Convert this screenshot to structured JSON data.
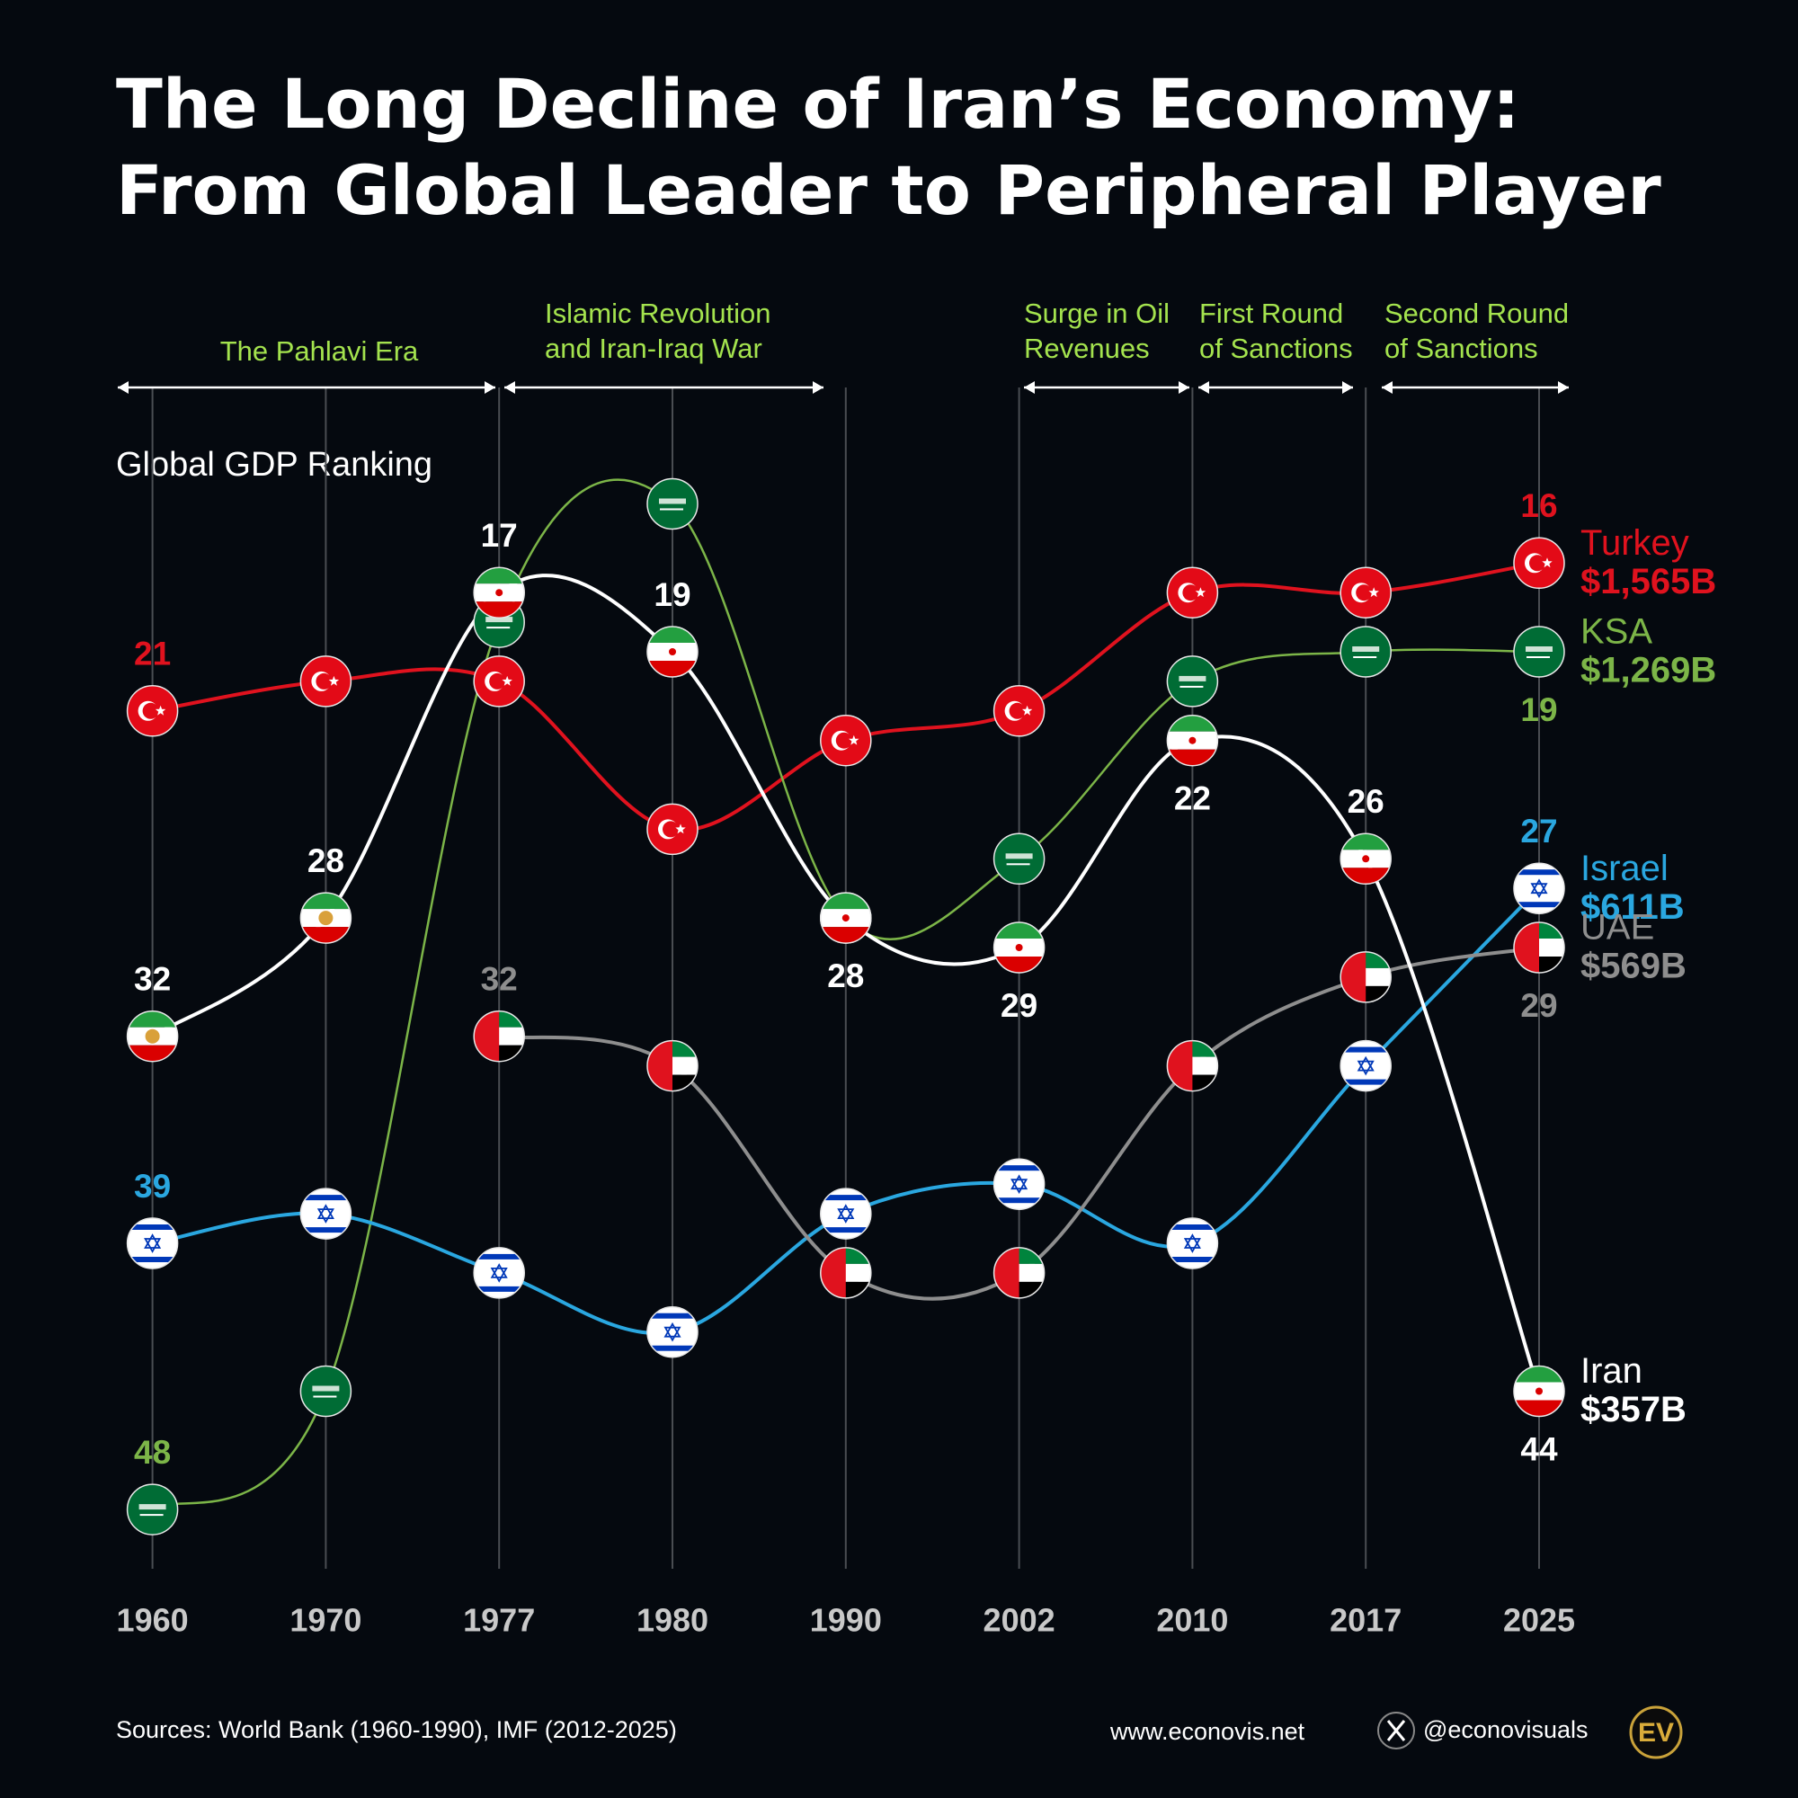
{
  "chart_data": {
    "type": "bump",
    "title": "The Long Decline of Iran’s Economy:",
    "subtitle": "From Global Leader to Peripheral Player",
    "ylabel": "Global GDP Ranking",
    "categories": [
      "1960",
      "1970",
      "1977",
      "1980",
      "1990",
      "2002",
      "2010",
      "2017",
      "2025"
    ],
    "ylim": [
      50,
      12
    ],
    "series": [
      {
        "name": "Turkey",
        "color": "#e0121e",
        "end_label": "$1,565B",
        "values": [
          21,
          20,
          20,
          25,
          22,
          21,
          17,
          17,
          16
        ]
      },
      {
        "name": "KSA",
        "color": "#7cb548",
        "end_label": "$1,269B",
        "values": [
          48,
          44,
          18,
          14,
          28,
          26,
          20,
          19,
          19
        ]
      },
      {
        "name": "Israel",
        "color": "#2aa7e0",
        "end_label": "$611B",
        "values": [
          39,
          38,
          40,
          42,
          38,
          37,
          39,
          33,
          27
        ]
      },
      {
        "name": "UAE",
        "color": "#8e8e8e",
        "end_label": "$569B",
        "values": [
          null,
          null,
          32,
          33,
          40,
          40,
          33,
          30,
          29
        ]
      },
      {
        "name": "Iran",
        "color": "#ffffff",
        "end_label": "$357B",
        "show_all_labels": true,
        "values": [
          32,
          28,
          17,
          19,
          28,
          29,
          22,
          26,
          44
        ]
      }
    ],
    "annotations": [
      {
        "text": [
          "The Pahlavi Era"
        ]
      },
      {
        "text": [
          "Islamic Revolution",
          "and Iran-Iraq War"
        ]
      },
      {
        "text": [
          "Surge in Oil",
          "Revenues"
        ]
      },
      {
        "text": [
          "First Round",
          "of Sanctions"
        ]
      },
      {
        "text": [
          "Second Round",
          "of Sanctions"
        ]
      }
    ]
  },
  "footer": {
    "source": "Sources: World Bank (1960-1990), IMF (2012-2025)",
    "website": "www.econovis.net",
    "handle": "@econovisuals",
    "logo": "EV"
  }
}
